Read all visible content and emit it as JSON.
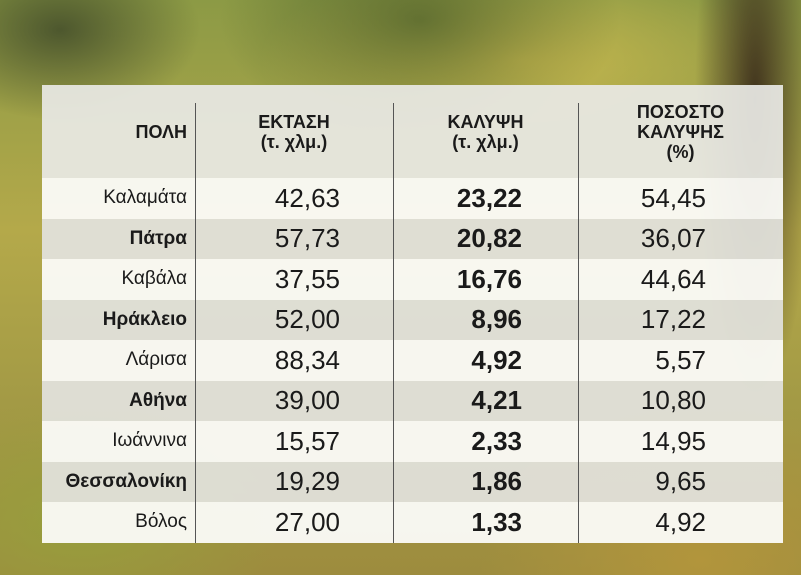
{
  "table": {
    "headers": [
      [
        "ΠΟΛΗ"
      ],
      [
        "ΕΚΤΑΣΗ",
        "(τ. χλμ.)"
      ],
      [
        "ΚΑΛΥΨΗ",
        "(τ. χλμ.)"
      ],
      [
        "ΠΟΣΟΣΤΟ",
        "ΚΑΛΥΨΗΣ",
        "(%)"
      ]
    ],
    "rows": [
      [
        "Καλαμάτα",
        "42,63",
        "23,22",
        "54,45"
      ],
      [
        "Πάτρα",
        "57,73",
        "20,82",
        "36,07"
      ],
      [
        "Καβάλα",
        "37,55",
        "16,76",
        "44,64"
      ],
      [
        "Ηράκλειο",
        "52,00",
        "8,96",
        "17,22"
      ],
      [
        "Λάρισα",
        "88,34",
        "4,92",
        "5,57"
      ],
      [
        "Αθήνα",
        "39,00",
        "4,21",
        "10,80"
      ],
      [
        "Ιωάννινα",
        "15,57",
        "2,33",
        "14,95"
      ],
      [
        "Θεσσαλονίκη",
        "19,29",
        "1,86",
        "9,65"
      ],
      [
        "Βόλος",
        "27,00",
        "1,33",
        "4,92"
      ]
    ]
  }
}
